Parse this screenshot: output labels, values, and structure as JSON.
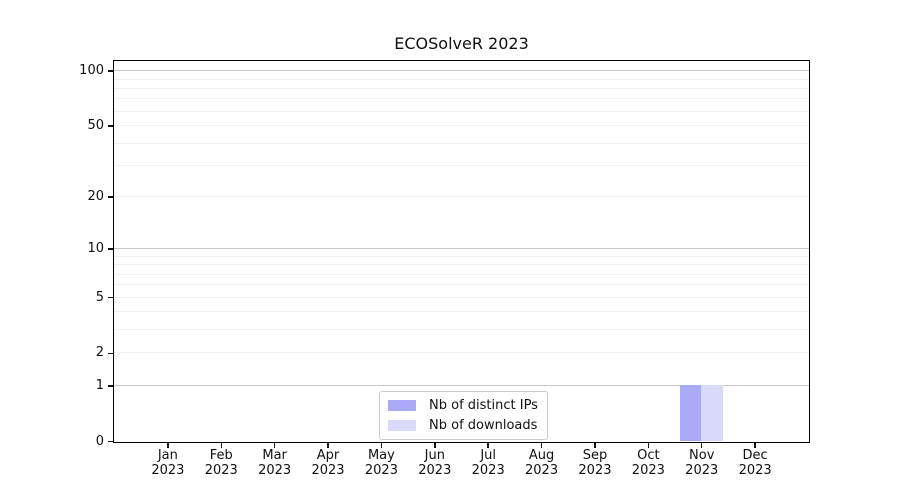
{
  "chart_data": {
    "type": "bar",
    "title": "ECOSolveR 2023",
    "x_axis": {
      "months": [
        "Jan",
        "Feb",
        "Mar",
        "Apr",
        "May",
        "Jun",
        "Jul",
        "Aug",
        "Sep",
        "Oct",
        "Nov",
        "Dec"
      ],
      "year": "2023"
    },
    "y_axis": {
      "scale": "log1p",
      "lim": [
        0,
        113
      ],
      "ticks": [
        0,
        1,
        2,
        5,
        10,
        20,
        50,
        100
      ],
      "major_gridlines": [
        1,
        10,
        100
      ],
      "minor_gridlines": [
        2,
        3,
        4,
        5,
        6,
        7,
        8,
        9,
        20,
        30,
        40,
        50,
        60,
        70,
        80,
        90
      ]
    },
    "series": [
      {
        "name": "Nb of distinct IPs",
        "color": "#aaaaf6",
        "values": [
          0,
          0,
          0,
          0,
          0,
          0,
          0,
          0,
          0,
          0,
          1,
          0
        ]
      },
      {
        "name": "Nb of downloads",
        "color": "#d9d9f9",
        "values": [
          0,
          0,
          0,
          0,
          0,
          0,
          0,
          0,
          0,
          0,
          1,
          0
        ]
      }
    ],
    "legend": {
      "position": "lower center",
      "border_color": "#cccccc"
    },
    "layout_hints": {
      "grid": true,
      "frame": "full-box",
      "bar_width_fraction": 0.4
    }
  }
}
